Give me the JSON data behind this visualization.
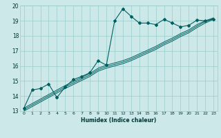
{
  "xlabel": "Humidex (Indice chaleur)",
  "xlim": [
    -0.5,
    23.5
  ],
  "ylim": [
    13,
    20
  ],
  "xticks": [
    0,
    1,
    2,
    3,
    4,
    5,
    6,
    7,
    8,
    9,
    10,
    11,
    12,
    13,
    14,
    15,
    16,
    17,
    18,
    19,
    20,
    21,
    22,
    23
  ],
  "yticks": [
    13,
    14,
    15,
    16,
    17,
    18,
    19,
    20
  ],
  "background_color": "#cce8e8",
  "grid_color": "#99cccc",
  "line_color": "#006060",
  "series1_x": [
    0,
    1,
    2,
    3,
    4,
    5,
    6,
    7,
    8,
    9,
    10,
    11,
    12,
    13,
    14,
    15,
    16,
    17,
    18,
    19,
    20,
    21,
    22,
    23
  ],
  "series1_y": [
    13.2,
    14.4,
    14.5,
    14.8,
    13.9,
    14.6,
    15.1,
    15.3,
    15.55,
    16.35,
    16.05,
    19.0,
    19.8,
    19.3,
    18.85,
    18.85,
    18.75,
    19.1,
    18.85,
    18.6,
    18.7,
    19.05,
    19.0,
    19.1
  ],
  "series2_x": [
    0,
    5,
    8,
    9,
    10,
    11,
    12,
    13,
    14,
    15,
    16,
    17,
    18,
    19,
    20,
    21,
    22,
    23
  ],
  "series2_y": [
    13.0,
    14.5,
    15.3,
    15.65,
    15.85,
    16.0,
    16.15,
    16.35,
    16.6,
    16.85,
    17.1,
    17.4,
    17.65,
    17.95,
    18.2,
    18.55,
    18.85,
    19.1
  ],
  "series3_x": [
    0,
    5,
    8,
    9,
    10,
    11,
    12,
    13,
    14,
    15,
    16,
    17,
    18,
    19,
    20,
    21,
    22,
    23
  ],
  "series3_y": [
    13.1,
    14.6,
    15.4,
    15.75,
    15.95,
    16.1,
    16.25,
    16.45,
    16.7,
    16.95,
    17.2,
    17.5,
    17.75,
    18.05,
    18.3,
    18.65,
    18.95,
    19.15
  ],
  "series4_x": [
    0,
    5,
    8,
    9,
    10,
    11,
    12,
    13,
    14,
    15,
    16,
    17,
    18,
    19,
    20,
    21,
    22,
    23
  ],
  "series4_y": [
    13.2,
    14.7,
    15.5,
    15.85,
    16.05,
    16.2,
    16.35,
    16.55,
    16.8,
    17.05,
    17.3,
    17.6,
    17.85,
    18.15,
    18.4,
    18.75,
    19.0,
    19.2
  ]
}
